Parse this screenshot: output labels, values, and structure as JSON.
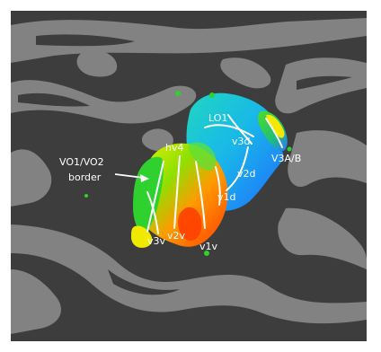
{
  "figure": {
    "labels": {
      "lo1": "LO1",
      "v3d": "v3d",
      "v3ab": "V3A/B",
      "v2d": "v2d",
      "v1d": "v1d",
      "hv4": "hv4",
      "vo_line1": "VO1/VO2",
      "vo_line2": "border",
      "v3v": "v3v",
      "v2v": "v2v",
      "v1v": "v1v"
    },
    "colors": {
      "background_dark": "#3d3d3d",
      "background_light": "#8a8a8a",
      "map_red": "#ff3b00",
      "map_orange": "#ff9a00",
      "map_yellow": "#e8f000",
      "map_green": "#2fd12f",
      "map_cyan": "#10c8c8",
      "map_blue": "#1e6cff",
      "label": "#ffffff"
    }
  }
}
